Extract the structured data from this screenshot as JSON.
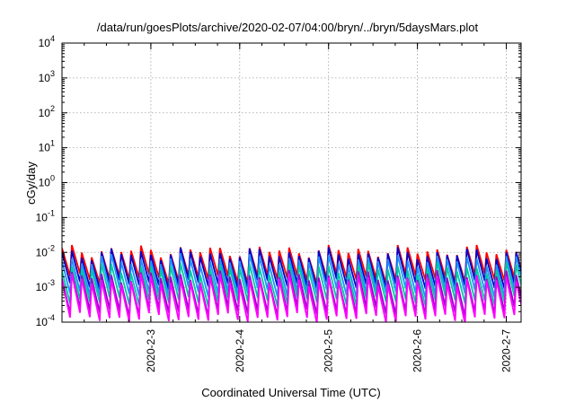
{
  "chart_data": {
    "type": "line",
    "title": "/data/run/goesPlots/archive/2020-02-07/04:00/bryn/../bryn/5daysMars.plot",
    "xlabel": "Coordinated Universal Time (UTC)",
    "ylabel": "cGy/day",
    "y_scale": "log",
    "ylim": [
      0.0001,
      10000
    ],
    "xlim": [
      "2020-02-02T00:00",
      "2020-02-07T04:00"
    ],
    "y_ticks": [
      {
        "base": "10",
        "exp": "4",
        "value": 10000
      },
      {
        "base": "10",
        "exp": "3",
        "value": 1000
      },
      {
        "base": "10",
        "exp": "2",
        "value": 100
      },
      {
        "base": "10",
        "exp": "1",
        "value": 10
      },
      {
        "base": "10",
        "exp": "0",
        "value": 1
      },
      {
        "base": "10",
        "exp": "-1",
        "value": 0.1
      },
      {
        "base": "10",
        "exp": "-2",
        "value": 0.01
      },
      {
        "base": "10",
        "exp": "-3",
        "value": 0.001
      },
      {
        "base": "10",
        "exp": "-4",
        "value": 0.0001
      }
    ],
    "x_ticks": [
      {
        "label": "2020-2-3",
        "date": "2020-02-03T00:00"
      },
      {
        "label": "2020-2-4",
        "date": "2020-02-04T00:00"
      },
      {
        "label": "2020-2-5",
        "date": "2020-02-05T00:00"
      },
      {
        "label": "2020-2-6",
        "date": "2020-02-06T00:00"
      },
      {
        "label": "2020-2-7",
        "date": "2020-02-07T00:00"
      }
    ],
    "grid": true,
    "legend": "none",
    "series": [
      {
        "color": "#ff0000",
        "peak": 0.011,
        "trough": 0.0018
      },
      {
        "color": "#0000cc",
        "peak": 0.009,
        "trough": 0.0012
      },
      {
        "color": "#1e90ff",
        "peak": 0.006,
        "trough": 0.0007
      },
      {
        "color": "#00c8a0",
        "peak": 0.0035,
        "trough": 0.0004
      },
      {
        "color": "#9900cc",
        "peak": 0.002,
        "trough": 0.0002
      },
      {
        "color": "#ff00ff",
        "peak": 0.0016,
        "trough": 0.00013
      }
    ]
  }
}
